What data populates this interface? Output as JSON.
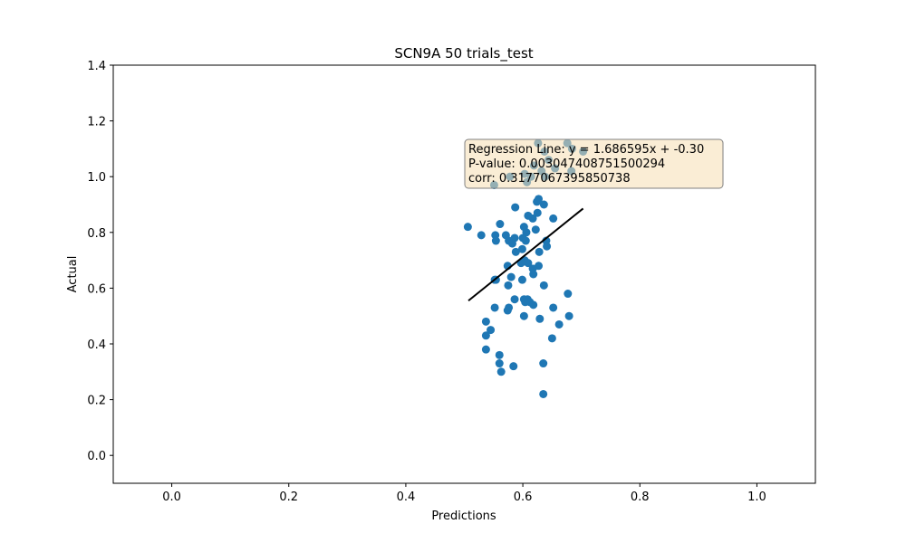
{
  "chart_data": {
    "type": "scatter",
    "title": "SCN9A 50 trials_test",
    "xlabel": "Predictions",
    "ylabel": "Actual",
    "xlim": [
      -0.1,
      1.1
    ],
    "ylim": [
      -0.1,
      1.4
    ],
    "xticks": [
      "0.0",
      "0.2",
      "0.4",
      "0.6",
      "0.8",
      "1.0"
    ],
    "yticks": [
      "0.0",
      "0.2",
      "0.4",
      "0.6",
      "0.8",
      "1.0",
      "1.2",
      "1.4"
    ],
    "grid": false,
    "point_color": "#1f77b4",
    "line_color": "#000000",
    "annotation_bg": "#f5deb3",
    "regression": {
      "slope": 1.686595,
      "intercept": -0.3,
      "x_range": [
        0.507,
        0.703
      ]
    },
    "annotation": {
      "line1": "Regression Line: y = 1.686595x + -0.30",
      "line2": "P-value: 0.003047408751500294",
      "line3": "corr: 0.3177067395850738"
    },
    "points": [
      [
        0.626,
        1.12
      ],
      [
        0.676,
        1.12
      ],
      [
        0.684,
        1.1
      ],
      [
        0.644,
        1.06
      ],
      [
        0.703,
        1.09
      ],
      [
        0.637,
        1.09
      ],
      [
        0.619,
        1.04
      ],
      [
        0.655,
        1.03
      ],
      [
        0.683,
        1.02
      ],
      [
        0.632,
        1.02
      ],
      [
        0.603,
        1.01
      ],
      [
        0.578,
        1.0
      ],
      [
        0.614,
        1.0
      ],
      [
        0.638,
        1.0
      ],
      [
        0.607,
        0.98
      ],
      [
        0.551,
        0.97
      ],
      [
        0.627,
        0.92
      ],
      [
        0.624,
        0.91
      ],
      [
        0.636,
        0.9
      ],
      [
        0.587,
        0.89
      ],
      [
        0.609,
        0.86
      ],
      [
        0.625,
        0.87
      ],
      [
        0.652,
        0.85
      ],
      [
        0.617,
        0.85
      ],
      [
        0.561,
        0.83
      ],
      [
        0.506,
        0.82
      ],
      [
        0.602,
        0.82
      ],
      [
        0.622,
        0.81
      ],
      [
        0.606,
        0.8
      ],
      [
        0.529,
        0.79
      ],
      [
        0.553,
        0.79
      ],
      [
        0.571,
        0.79
      ],
      [
        0.586,
        0.78
      ],
      [
        0.6,
        0.78
      ],
      [
        0.554,
        0.77
      ],
      [
        0.576,
        0.77
      ],
      [
        0.605,
        0.77
      ],
      [
        0.582,
        0.76
      ],
      [
        0.64,
        0.77
      ],
      [
        0.641,
        0.75
      ],
      [
        0.599,
        0.74
      ],
      [
        0.588,
        0.73
      ],
      [
        0.628,
        0.73
      ],
      [
        0.603,
        0.7
      ],
      [
        0.609,
        0.69
      ],
      [
        0.597,
        0.69
      ],
      [
        0.574,
        0.68
      ],
      [
        0.627,
        0.68
      ],
      [
        0.617,
        0.67
      ],
      [
        0.618,
        0.65
      ],
      [
        0.552,
        0.63
      ],
      [
        0.554,
        0.63
      ],
      [
        0.58,
        0.64
      ],
      [
        0.599,
        0.63
      ],
      [
        0.575,
        0.61
      ],
      [
        0.636,
        0.61
      ],
      [
        0.677,
        0.58
      ],
      [
        0.602,
        0.56
      ],
      [
        0.608,
        0.56
      ],
      [
        0.586,
        0.56
      ],
      [
        0.612,
        0.55
      ],
      [
        0.618,
        0.54
      ],
      [
        0.604,
        0.55
      ],
      [
        0.552,
        0.53
      ],
      [
        0.576,
        0.53
      ],
      [
        0.574,
        0.52
      ],
      [
        0.652,
        0.53
      ],
      [
        0.602,
        0.5
      ],
      [
        0.629,
        0.49
      ],
      [
        0.679,
        0.5
      ],
      [
        0.537,
        0.48
      ],
      [
        0.662,
        0.47
      ],
      [
        0.545,
        0.45
      ],
      [
        0.537,
        0.43
      ],
      [
        0.65,
        0.42
      ],
      [
        0.537,
        0.38
      ],
      [
        0.56,
        0.36
      ],
      [
        0.56,
        0.33
      ],
      [
        0.584,
        0.32
      ],
      [
        0.635,
        0.33
      ],
      [
        0.563,
        0.3
      ],
      [
        0.635,
        0.22
      ]
    ]
  }
}
